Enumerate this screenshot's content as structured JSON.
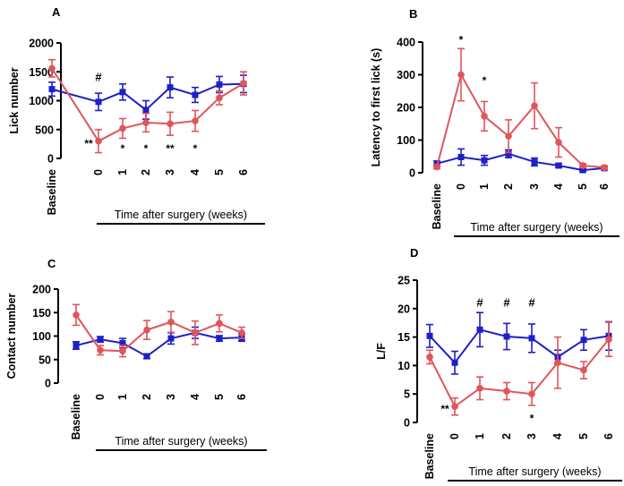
{
  "colors": {
    "blue": "#1f1fc8",
    "red": "#e0555b",
    "axis": "#000000"
  },
  "chart_data": [
    {
      "panel": "A",
      "type": "line",
      "ylabel": "Lick number",
      "xlabel": "Time after surgery (weeks)",
      "categories": [
        "Baseline",
        "0",
        "1",
        "2",
        "3",
        "4",
        "5",
        "6"
      ],
      "ylim": [
        0,
        2000
      ],
      "yticks": [
        0,
        500,
        1000,
        1500,
        2000
      ],
      "series": [
        {
          "name": "blue",
          "color": "#1f1fc8",
          "marker": "square",
          "values": [
            1200,
            980,
            1150,
            840,
            1230,
            1100,
            1280,
            1290
          ],
          "errors": [
            120,
            150,
            140,
            160,
            180,
            130,
            140,
            150
          ]
        },
        {
          "name": "red",
          "color": "#e0555b",
          "marker": "circle",
          "values": [
            1560,
            300,
            520,
            620,
            600,
            650,
            1050,
            1300
          ],
          "errors": [
            150,
            200,
            170,
            160,
            200,
            180,
            120,
            200
          ]
        }
      ],
      "annotations": [
        {
          "text": "#",
          "x": "0",
          "y": 1400
        },
        {
          "text": "**",
          "x": "0",
          "y": 300,
          "offset": "left"
        },
        {
          "text": "*",
          "x": "1",
          "y": 220
        },
        {
          "text": "*",
          "x": "2",
          "y": 220
        },
        {
          "text": "**",
          "x": "3",
          "y": 220
        },
        {
          "text": "*",
          "x": "4",
          "y": 220
        }
      ]
    },
    {
      "panel": "B",
      "type": "line",
      "ylabel": "Latency to first lick (s)",
      "xlabel": "Time after surgery (weeks)",
      "categories": [
        "Baseline",
        "0",
        "1",
        "2",
        "3",
        "4",
        "5",
        "6"
      ],
      "ylim": [
        0,
        400
      ],
      "yticks": [
        0,
        100,
        200,
        300,
        400
      ],
      "series": [
        {
          "name": "blue",
          "color": "#1f1fc8",
          "marker": "square",
          "values": [
            28,
            48,
            38,
            58,
            33,
            22,
            8,
            14
          ],
          "errors": [
            8,
            25,
            15,
            12,
            12,
            6,
            4,
            4
          ]
        },
        {
          "name": "red",
          "color": "#e0555b",
          "marker": "circle",
          "values": [
            18,
            300,
            173,
            112,
            205,
            93,
            22,
            16
          ],
          "errors": [
            6,
            80,
            45,
            50,
            70,
            45,
            6,
            5
          ]
        }
      ],
      "annotations": [
        {
          "text": "*",
          "x": "0",
          "y": 415
        },
        {
          "text": "*",
          "x": "1",
          "y": 290
        }
      ]
    },
    {
      "panel": "C",
      "type": "line",
      "ylabel": "Contact number",
      "xlabel": "Time after surgery (weeks)",
      "categories": [
        "Baseline",
        "0",
        "1",
        "2",
        "3",
        "4",
        "5",
        "6"
      ],
      "ylim": [
        0,
        200
      ],
      "yticks": [
        0,
        50,
        100,
        150,
        200
      ],
      "series": [
        {
          "name": "blue",
          "color": "#1f1fc8",
          "marker": "square",
          "values": [
            80,
            93,
            85,
            57,
            95,
            107,
            95,
            97
          ],
          "errors": [
            8,
            6,
            10,
            5,
            12,
            12,
            6,
            8
          ]
        },
        {
          "name": "red",
          "color": "#e0555b",
          "marker": "circle",
          "values": [
            145,
            70,
            68,
            113,
            130,
            107,
            127,
            107
          ],
          "errors": [
            22,
            10,
            12,
            20,
            22,
            25,
            18,
            12
          ]
        }
      ],
      "annotations": []
    },
    {
      "panel": "D",
      "type": "line",
      "ylabel": "L/F",
      "xlabel": "Time after surgery (weeks)",
      "categories": [
        "Baseline",
        "0",
        "1",
        "2",
        "3",
        "4",
        "5",
        "6"
      ],
      "ylim": [
        0,
        25
      ],
      "yticks": [
        0,
        5,
        10,
        15,
        20,
        25
      ],
      "series": [
        {
          "name": "blue",
          "color": "#1f1fc8",
          "marker": "square",
          "values": [
            15.2,
            10.5,
            16.3,
            15.1,
            14.8,
            11.5,
            14.5,
            15.2
          ],
          "errors": [
            2,
            2,
            3,
            2.3,
            2.5,
            1.2,
            1.8,
            2.5
          ]
        },
        {
          "name": "red",
          "color": "#e0555b",
          "marker": "circle",
          "values": [
            11.5,
            2.8,
            6,
            5.5,
            5,
            10.5,
            9.2,
            14.6
          ],
          "errors": [
            1.2,
            1.5,
            2,
            1.5,
            2,
            4.5,
            1.5,
            3
          ]
        }
      ],
      "annotations": [
        {
          "text": "**",
          "x": "0",
          "y": 2.8,
          "offset": "left"
        },
        {
          "text": "#",
          "x": "1",
          "y": 21
        },
        {
          "text": "#",
          "x": "2",
          "y": 21
        },
        {
          "text": "#",
          "x": "3",
          "y": 21
        },
        {
          "text": "*",
          "x": "3",
          "y": 1.2
        }
      ]
    }
  ]
}
